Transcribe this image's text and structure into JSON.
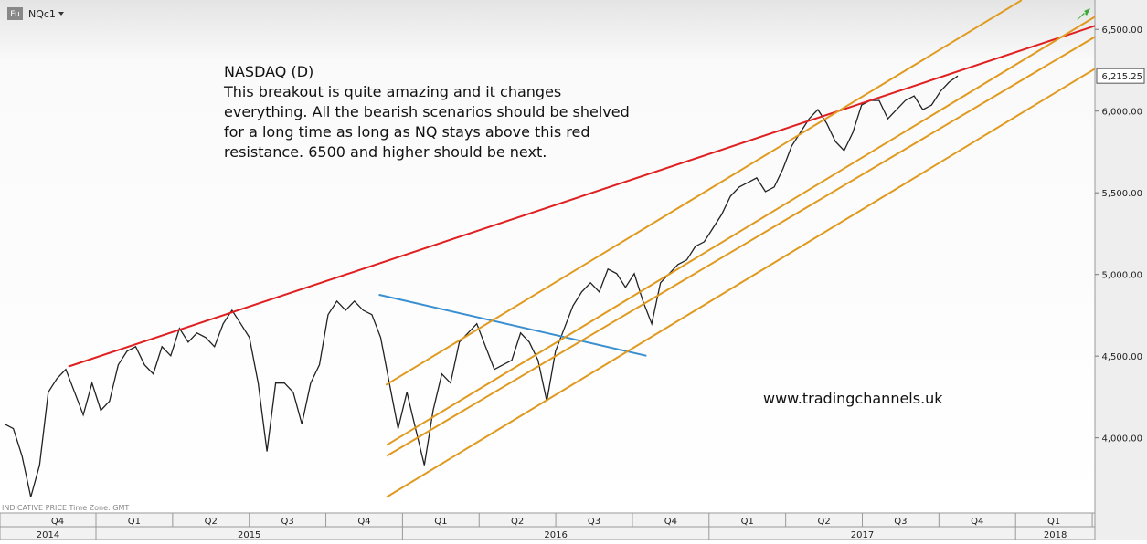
{
  "header": {
    "badge": "Fu",
    "symbol": "NQc1"
  },
  "footer_note": "INDICATIVE PRICE   Time Zone: GMT",
  "chart_data": {
    "type": "line",
    "annotation": [
      "NASDAQ (D)",
      "This breakout is quite amazing and it changes",
      "everything. All the bearish scenarios should be shelved",
      "for a long time as long as NQ stays above this red",
      "resistance. 6500 and higher should be next."
    ],
    "watermark": "www.tradingchannels.uk",
    "color": "#222222",
    "values": [
      4084,
      4056,
      3889,
      3638,
      3833,
      4279,
      4363,
      4419,
      4279,
      4140,
      4335,
      4168,
      4224,
      4447,
      4530,
      4558,
      4447,
      4391,
      4558,
      4502,
      4670,
      4586,
      4642,
      4614,
      4558,
      4698,
      4781,
      4698,
      4614,
      4335,
      3917,
      4335,
      4335,
      4279,
      4084,
      4335,
      4447,
      4754,
      4837,
      4781,
      4837,
      4781,
      4754,
      4614,
      4335,
      4056,
      4279,
      4056,
      3833,
      4168,
      4391,
      4335,
      4586,
      4642,
      4698,
      4558,
      4419,
      4447,
      4475,
      4642,
      4586,
      4475,
      4224,
      4530,
      4670,
      4809,
      4893,
      4949,
      4893,
      5033,
      5005,
      4921,
      5005,
      4837,
      4698,
      4949,
      5005,
      5061,
      5089,
      5172,
      5200,
      5284,
      5367,
      5479,
      5535,
      5563,
      5591,
      5507,
      5535,
      5646,
      5786,
      5870,
      5953,
      6009,
      5925,
      5814,
      5758,
      5870,
      6037,
      6065,
      6065,
      5953,
      6009,
      6065,
      6093,
      6009,
      6037,
      6121,
      6177,
      6215.25
    ],
    "last_value": {
      "value": 6215.25,
      "label": "6,215.25"
    },
    "trendlines": [
      {
        "color": "#e02020",
        "x": [
          7.3,
          124.7
        ],
        "y": [
          4436,
          6522
        ]
      },
      {
        "color": "#3a8fd0",
        "x": [
          42.8,
          73.4
        ],
        "y": [
          4876,
          4502
        ]
      },
      {
        "color": "#e09a20",
        "x": [
          43.6,
          116.3
        ],
        "y": [
          4324,
          6679
        ]
      },
      {
        "color": "#e09a20",
        "x": [
          43.7,
          124.7
        ],
        "y": [
          3956,
          6578
        ]
      },
      {
        "color": "#e09a20",
        "x": [
          43.7,
          124.7
        ],
        "y": [
          3889,
          6455
        ]
      },
      {
        "color": "#e09a20",
        "x": [
          43.7,
          124.7
        ],
        "y": [
          3638,
          6260
        ]
      }
    ],
    "ylim": [
      3540,
      6680
    ],
    "yticks": [
      {
        "value": 4000,
        "label": "4,000.00"
      },
      {
        "value": 4500,
        "label": "4,500.00"
      },
      {
        "value": 5000,
        "label": "5,000.00"
      },
      {
        "value": 5500,
        "label": "5,500.00"
      },
      {
        "value": 6000,
        "label": "6,000.00"
      },
      {
        "value": 6500,
        "label": "6,500.00"
      }
    ],
    "quarters": [
      "Q4",
      "Q1",
      "Q2",
      "Q3",
      "Q4",
      "Q1",
      "Q2",
      "Q3",
      "Q4",
      "Q1",
      "Q2",
      "Q3",
      "Q4",
      "Q1"
    ],
    "years": [
      "2014",
      "2015",
      "2016",
      "2017",
      "2018"
    ]
  }
}
